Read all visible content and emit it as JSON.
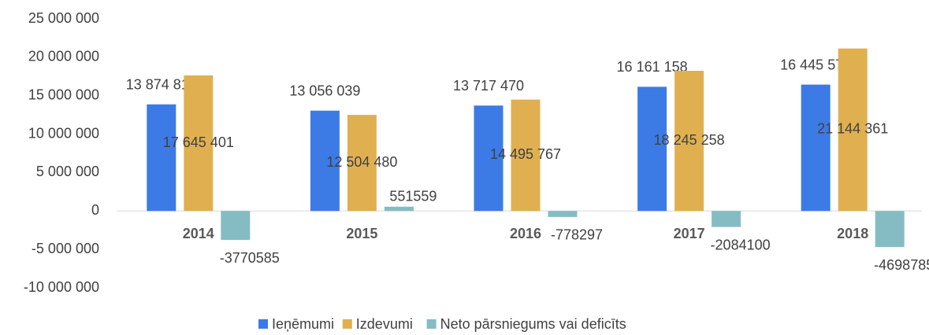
{
  "chart_data": {
    "type": "bar",
    "categories": [
      "2014",
      "2015",
      "2016",
      "2017",
      "2018"
    ],
    "series": [
      {
        "name": "Ieņēmumi",
        "color": "#3c7be6",
        "values": [
          13874816,
          13056039,
          13717470,
          16161158,
          16445576
        ],
        "value_labels": [
          "13 874 816",
          "13 056 039",
          "13 717 470",
          "16 161 158",
          "16 445 576"
        ]
      },
      {
        "name": "Izdevumi",
        "color": "#e0b050",
        "values": [
          17645401,
          12504480,
          14495767,
          18245258,
          21144361
        ],
        "value_labels": [
          "17 645 401",
          "12 504 480",
          "14 495 767",
          "18 245 258",
          "21 144 361"
        ]
      },
      {
        "name": "Neto pārsniegums vai deficīts",
        "color": "#85bcc4",
        "values": [
          -3770585,
          551559,
          -778297,
          -2084100,
          -4698785
        ]
      }
    ],
    "ylim": [
      -10000000,
      25000000
    ],
    "yticks": [
      {
        "value": -10000000,
        "label": "-10 000 000"
      },
      {
        "value": -5000000,
        "label": "-5 000 000"
      },
      0,
      {
        "value": 5000000,
        "label": "5 000 000"
      },
      {
        "value": 10000000,
        "label": "10 000 000"
      },
      {
        "value": 15000000,
        "label": "15 000 000"
      },
      {
        "value": 20000000,
        "label": "20 000 000"
      },
      {
        "value": 25000000,
        "label": "25 000 000"
      }
    ],
    "legend": "bottom"
  }
}
